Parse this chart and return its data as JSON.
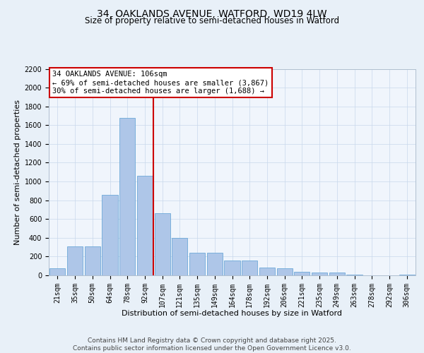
{
  "title": "34, OAKLANDS AVENUE, WATFORD, WD19 4LW",
  "subtitle": "Size of property relative to semi-detached houses in Watford",
  "xlabel": "Distribution of semi-detached houses by size in Watford",
  "ylabel": "Number of semi-detached properties",
  "categories": [
    "21sqm",
    "35sqm",
    "50sqm",
    "64sqm",
    "78sqm",
    "92sqm",
    "107sqm",
    "121sqm",
    "135sqm",
    "149sqm",
    "164sqm",
    "178sqm",
    "192sqm",
    "206sqm",
    "221sqm",
    "235sqm",
    "249sqm",
    "263sqm",
    "278sqm",
    "292sqm",
    "306sqm"
  ],
  "values": [
    75,
    310,
    310,
    860,
    1680,
    1060,
    660,
    400,
    240,
    240,
    160,
    160,
    80,
    75,
    40,
    30,
    30,
    5,
    3,
    2,
    5
  ],
  "bar_color": "#aec6e8",
  "bar_edge_color": "#5a9fd4",
  "vline_index": 6,
  "vline_color": "#cc0000",
  "annotation_text": "34 OAKLANDS AVENUE: 106sqm\n← 69% of semi-detached houses are smaller (3,867)\n30% of semi-detached houses are larger (1,688) →",
  "annotation_box_color": "#ffffff",
  "annotation_box_edge_color": "#cc0000",
  "ylim": [
    0,
    2200
  ],
  "yticks": [
    0,
    200,
    400,
    600,
    800,
    1000,
    1200,
    1400,
    1600,
    1800,
    2000,
    2200
  ],
  "bg_color": "#e8f0f8",
  "plot_bg_color": "#f0f5fc",
  "grid_color": "#c8d8ec",
  "footer_line1": "Contains HM Land Registry data © Crown copyright and database right 2025.",
  "footer_line2": "Contains public sector information licensed under the Open Government Licence v3.0.",
  "title_fontsize": 10,
  "subtitle_fontsize": 8.5,
  "axis_label_fontsize": 8,
  "tick_fontsize": 7,
  "annotation_fontsize": 7.5,
  "footer_fontsize": 6.5
}
